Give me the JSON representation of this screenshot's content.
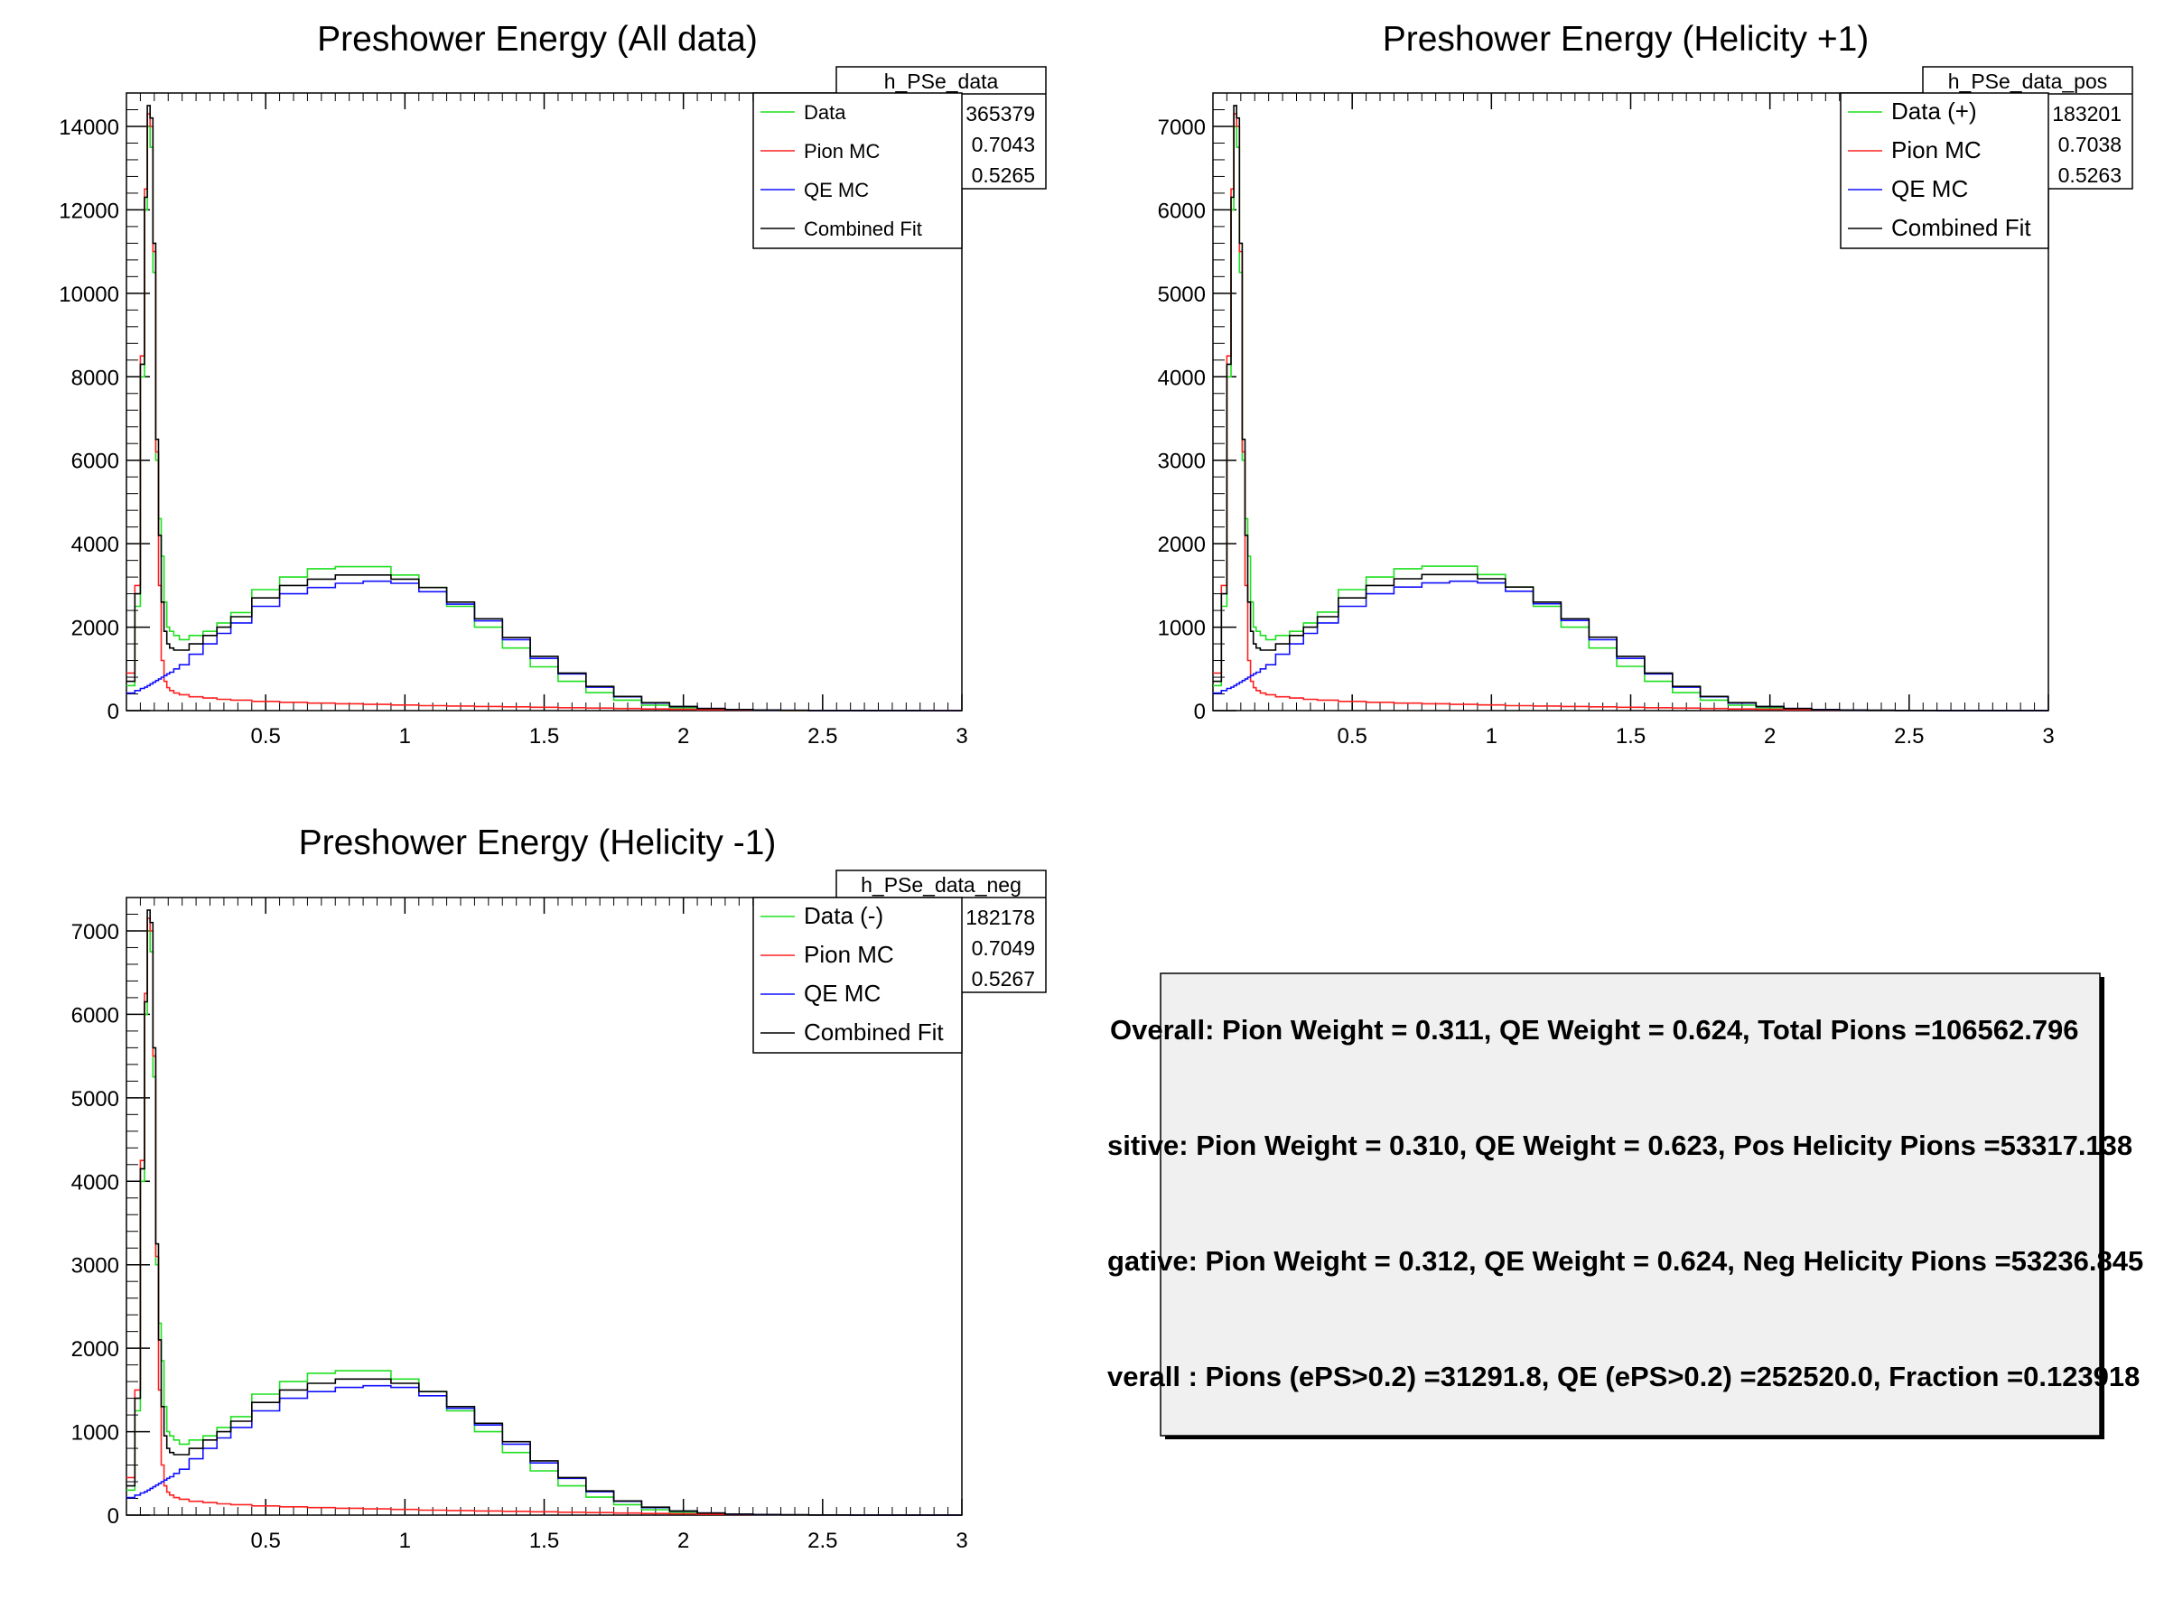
{
  "chart_data": [
    {
      "type": "line",
      "title": "Preshower Energy (All data)",
      "stats_name": "h_PSe_data",
      "stats_values": [
        "365379",
        "0.7043",
        "0.5265"
      ],
      "legend": [
        "Data",
        "Pion MC",
        "QE MC",
        "Combined Fit"
      ],
      "legend_placement": "top-right",
      "xlim": [
        0,
        3
      ],
      "ylim": [
        0,
        14800
      ],
      "xticks": [
        "0.5",
        "1",
        "1.5",
        "2",
        "2.5",
        "3"
      ],
      "yticks": [
        "0",
        "2000",
        "4000",
        "6000",
        "8000",
        "10000",
        "12000",
        "14000"
      ],
      "x": [
        0.02,
        0.04,
        0.06,
        0.07,
        0.08,
        0.09,
        0.1,
        0.11,
        0.12,
        0.13,
        0.14,
        0.15,
        0.16,
        0.18,
        0.2,
        0.25,
        0.3,
        0.35,
        0.4,
        0.5,
        0.6,
        0.7,
        0.8,
        0.9,
        1.0,
        1.1,
        1.2,
        1.3,
        1.4,
        1.5,
        1.6,
        1.7,
        1.8,
        1.9,
        2.0,
        2.1,
        2.2,
        2.3,
        2.4,
        2.5,
        2.7,
        3.0
      ],
      "series": [
        {
          "name": "Data",
          "color": "#1fe01f",
          "values": [
            600,
            2500,
            8000,
            12000,
            14000,
            13500,
            10500,
            6000,
            4600,
            3700,
            2600,
            2000,
            1900,
            1800,
            1700,
            1800,
            1900,
            2100,
            2350,
            2900,
            3200,
            3400,
            3450,
            3450,
            3250,
            2950,
            2500,
            2000,
            1500,
            1050,
            700,
            430,
            250,
            130,
            70,
            40,
            20,
            10,
            5,
            3,
            2,
            1
          ]
        },
        {
          "name": "Pion MC",
          "color": "#ff2020",
          "values": [
            900,
            3000,
            8500,
            12500,
            14300,
            14000,
            11000,
            6200,
            3000,
            1200,
            700,
            550,
            480,
            420,
            380,
            330,
            300,
            270,
            250,
            220,
            200,
            180,
            165,
            150,
            135,
            120,
            110,
            100,
            90,
            80,
            70,
            60,
            50,
            40,
            30,
            20,
            15,
            10,
            5,
            3,
            2,
            1
          ]
        },
        {
          "name": "QE MC",
          "color": "#1010ff",
          "values": [
            420,
            480,
            530,
            560,
            600,
            640,
            680,
            720,
            760,
            800,
            840,
            880,
            920,
            1000,
            1100,
            1350,
            1600,
            1850,
            2100,
            2500,
            2800,
            2950,
            3050,
            3100,
            3050,
            2850,
            2550,
            2150,
            1700,
            1250,
            880,
            560,
            330,
            180,
            95,
            50,
            25,
            12,
            6,
            3,
            2,
            1
          ]
        },
        {
          "name": "Combined Fit",
          "color": "#000000",
          "values": [
            700,
            2800,
            8300,
            12300,
            14500,
            14200,
            11200,
            6500,
            4200,
            2600,
            1900,
            1600,
            1500,
            1450,
            1450,
            1600,
            1800,
            2000,
            2250,
            2700,
            3000,
            3150,
            3250,
            3250,
            3150,
            2950,
            2600,
            2200,
            1750,
            1300,
            900,
            580,
            340,
            190,
            100,
            50,
            25,
            12,
            6,
            3,
            2,
            1
          ]
        }
      ]
    },
    {
      "type": "line",
      "title": "Preshower Energy (Helicity +1)",
      "stats_name": "h_PSe_data_pos",
      "stats_values": [
        "183201",
        "0.7038",
        "0.5263"
      ],
      "legend": [
        "Data (+)",
        "Pion MC",
        "QE MC",
        "Combined Fit"
      ],
      "legend_placement": "top-right",
      "xlim": [
        0,
        3
      ],
      "ylim": [
        0,
        7400
      ],
      "xticks": [
        "0.5",
        "1",
        "1.5",
        "2",
        "2.5",
        "3"
      ],
      "yticks": [
        "0",
        "1000",
        "2000",
        "3000",
        "4000",
        "5000",
        "6000",
        "7000"
      ],
      "x": [
        0.02,
        0.04,
        0.06,
        0.07,
        0.08,
        0.09,
        0.1,
        0.11,
        0.12,
        0.13,
        0.14,
        0.15,
        0.16,
        0.18,
        0.2,
        0.25,
        0.3,
        0.35,
        0.4,
        0.5,
        0.6,
        0.7,
        0.8,
        0.9,
        1.0,
        1.1,
        1.2,
        1.3,
        1.4,
        1.5,
        1.6,
        1.7,
        1.8,
        1.9,
        2.0,
        2.1,
        2.2,
        2.3,
        2.4,
        2.5,
        2.7,
        3.0
      ],
      "series": [
        {
          "name": "Data (+)",
          "color": "#1fe01f",
          "values": [
            300,
            1250,
            4000,
            6000,
            7000,
            6750,
            5250,
            3000,
            2300,
            1850,
            1300,
            1000,
            950,
            900,
            850,
            900,
            950,
            1050,
            1180,
            1450,
            1600,
            1700,
            1730,
            1730,
            1630,
            1480,
            1250,
            1000,
            750,
            530,
            350,
            215,
            125,
            65,
            35,
            20,
            10,
            5,
            3,
            2,
            1,
            1
          ]
        },
        {
          "name": "Pion MC",
          "color": "#ff2020",
          "values": [
            450,
            1500,
            4250,
            6250,
            7150,
            7000,
            5500,
            3100,
            1500,
            600,
            350,
            275,
            240,
            210,
            190,
            165,
            150,
            135,
            125,
            110,
            100,
            90,
            82,
            75,
            68,
            60,
            55,
            50,
            45,
            40,
            35,
            30,
            25,
            20,
            15,
            10,
            8,
            5,
            3,
            2,
            1,
            1
          ]
        },
        {
          "name": "QE MC",
          "color": "#1010ff",
          "values": [
            210,
            240,
            265,
            280,
            300,
            320,
            340,
            360,
            380,
            400,
            420,
            440,
            460,
            500,
            550,
            675,
            800,
            925,
            1050,
            1250,
            1400,
            1480,
            1530,
            1550,
            1530,
            1430,
            1280,
            1080,
            850,
            625,
            440,
            280,
            165,
            90,
            48,
            25,
            12,
            6,
            3,
            2,
            1,
            1
          ]
        },
        {
          "name": "Combined Fit",
          "color": "#000000",
          "values": [
            350,
            1400,
            4150,
            6150,
            7250,
            7100,
            5600,
            3250,
            2100,
            1300,
            950,
            800,
            750,
            725,
            725,
            800,
            900,
            1000,
            1125,
            1350,
            1500,
            1580,
            1630,
            1630,
            1580,
            1480,
            1300,
            1100,
            880,
            650,
            450,
            290,
            170,
            95,
            50,
            25,
            12,
            6,
            3,
            2,
            1,
            1
          ]
        }
      ]
    },
    {
      "type": "line",
      "title": "Preshower Energy (Helicity -1)",
      "stats_name": "h_PSe_data_neg",
      "stats_values": [
        "182178",
        "0.7049",
        "0.5267"
      ],
      "legend": [
        "Data (-)",
        "Pion MC",
        "QE MC",
        "Combined Fit"
      ],
      "legend_placement": "top-right",
      "xlim": [
        0,
        3
      ],
      "ylim": [
        0,
        7400
      ],
      "xticks": [
        "0.5",
        "1",
        "1.5",
        "2",
        "2.5",
        "3"
      ],
      "yticks": [
        "0",
        "1000",
        "2000",
        "3000",
        "4000",
        "5000",
        "6000",
        "7000"
      ],
      "x": [
        0.02,
        0.04,
        0.06,
        0.07,
        0.08,
        0.09,
        0.1,
        0.11,
        0.12,
        0.13,
        0.14,
        0.15,
        0.16,
        0.18,
        0.2,
        0.25,
        0.3,
        0.35,
        0.4,
        0.5,
        0.6,
        0.7,
        0.8,
        0.9,
        1.0,
        1.1,
        1.2,
        1.3,
        1.4,
        1.5,
        1.6,
        1.7,
        1.8,
        1.9,
        2.0,
        2.1,
        2.2,
        2.3,
        2.4,
        2.5,
        2.7,
        3.0
      ],
      "series": [
        {
          "name": "Data (-)",
          "color": "#1fe01f",
          "values": [
            300,
            1250,
            4000,
            6000,
            7000,
            6750,
            5250,
            3000,
            2300,
            1850,
            1300,
            1000,
            950,
            900,
            850,
            900,
            950,
            1050,
            1180,
            1450,
            1600,
            1700,
            1730,
            1730,
            1630,
            1480,
            1250,
            1000,
            750,
            530,
            350,
            215,
            125,
            65,
            35,
            20,
            10,
            5,
            3,
            2,
            1,
            1
          ]
        },
        {
          "name": "Pion MC",
          "color": "#ff2020",
          "values": [
            450,
            1500,
            4250,
            6250,
            7150,
            7000,
            5500,
            3100,
            1500,
            600,
            350,
            275,
            240,
            210,
            190,
            165,
            150,
            135,
            125,
            110,
            100,
            90,
            82,
            75,
            68,
            60,
            55,
            50,
            45,
            40,
            35,
            30,
            25,
            20,
            15,
            10,
            8,
            5,
            3,
            2,
            1,
            1
          ]
        },
        {
          "name": "QE MC",
          "color": "#1010ff",
          "values": [
            210,
            240,
            265,
            280,
            300,
            320,
            340,
            360,
            380,
            400,
            420,
            440,
            460,
            500,
            550,
            675,
            800,
            925,
            1050,
            1250,
            1400,
            1480,
            1530,
            1550,
            1530,
            1430,
            1280,
            1080,
            850,
            625,
            440,
            280,
            165,
            90,
            48,
            25,
            12,
            6,
            3,
            2,
            1,
            1
          ]
        },
        {
          "name": "Combined Fit",
          "color": "#000000",
          "values": [
            350,
            1400,
            4150,
            6150,
            7250,
            7100,
            5600,
            3250,
            2100,
            1300,
            950,
            800,
            750,
            725,
            725,
            800,
            900,
            1000,
            1125,
            1350,
            1500,
            1580,
            1630,
            1630,
            1580,
            1480,
            1300,
            1100,
            880,
            650,
            450,
            290,
            170,
            95,
            50,
            25,
            12,
            6,
            3,
            2,
            1,
            1
          ]
        }
      ]
    }
  ],
  "summary": {
    "lines": [
      "Overall:   Pion Weight = 0.311, QE Weight = 0.624, Total Pions =106562.796",
      "sitive:  Pion Weight = 0.310, QE Weight = 0.623, Pos Helicity Pions =53317.138",
      "gative:  Pion Weight = 0.312, QE Weight = 0.624, Neg Helicity Pions =53236.845",
      "verall : Pions (ePS>0.2) =31291.8, QE (ePS>0.2) =252520.0, Fraction =0.123918"
    ]
  }
}
